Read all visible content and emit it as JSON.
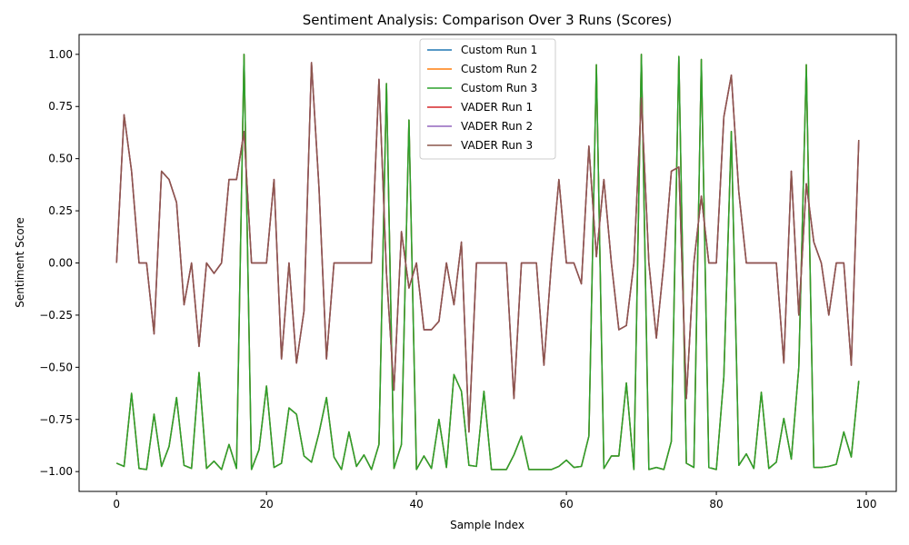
{
  "chart_data": {
    "type": "line",
    "title": "Sentiment Analysis: Comparison Over 3 Runs (Scores)",
    "xlabel": "Sample Index",
    "ylabel": "Sentiment Score",
    "xlim": [
      -5,
      104
    ],
    "ylim": [
      -1.095,
      1.095
    ],
    "x_ticks": [
      0,
      20,
      40,
      60,
      80,
      100
    ],
    "y_ticks": [
      -1.0,
      -0.75,
      -0.5,
      -0.25,
      0.0,
      0.25,
      0.5,
      0.75,
      1.0
    ],
    "y_tick_labels": [
      "−1.00",
      "−0.75",
      "−0.50",
      "−0.25",
      "0.00",
      "0.25",
      "0.50",
      "0.75",
      "1.00"
    ],
    "grid": false,
    "legend_position": "top-center",
    "x": [
      0,
      1,
      2,
      3,
      4,
      5,
      6,
      7,
      8,
      9,
      10,
      11,
      12,
      13,
      14,
      15,
      16,
      17,
      18,
      19,
      20,
      21,
      22,
      23,
      24,
      25,
      26,
      27,
      28,
      29,
      30,
      31,
      32,
      33,
      34,
      35,
      36,
      37,
      38,
      39,
      40,
      41,
      42,
      43,
      44,
      45,
      46,
      47,
      48,
      49,
      50,
      51,
      52,
      53,
      54,
      55,
      56,
      57,
      58,
      59,
      60,
      61,
      62,
      63,
      64,
      65,
      66,
      67,
      68,
      69,
      70,
      71,
      72,
      73,
      74,
      75,
      76,
      77,
      78,
      79,
      80,
      81,
      82,
      83,
      84,
      85,
      86,
      87,
      88,
      89,
      90,
      91,
      92,
      93,
      94,
      95,
      96,
      97,
      98,
      99
    ],
    "series": [
      {
        "name": "Custom Run 1",
        "color": "#1f77b4",
        "values": [
          -0.96,
          -0.975,
          -0.625,
          -0.985,
          -0.99,
          -0.725,
          -0.975,
          -0.88,
          -0.645,
          -0.97,
          -0.985,
          -0.525,
          -0.985,
          -0.95,
          -0.99,
          -0.87,
          -0.985,
          1.0,
          -0.99,
          -0.895,
          -0.59,
          -0.98,
          -0.96,
          -0.695,
          -0.725,
          -0.925,
          -0.955,
          -0.815,
          -0.645,
          -0.93,
          -0.99,
          -0.81,
          -0.975,
          -0.92,
          -0.99,
          -0.87,
          0.86,
          -0.985,
          -0.87,
          0.685,
          -0.99,
          -0.925,
          -0.985,
          -0.75,
          -0.98,
          -0.535,
          -0.615,
          -0.97,
          -0.975,
          -0.615,
          -0.99,
          -0.99,
          -0.99,
          -0.92,
          -0.83,
          -0.99,
          -0.99,
          -0.99,
          -0.99,
          -0.975,
          -0.945,
          -0.98,
          -0.975,
          -0.83,
          0.95,
          -0.985,
          -0.925,
          -0.925,
          -0.575,
          -0.99,
          1.0,
          -0.99,
          -0.98,
          -0.99,
          -0.855,
          0.99,
          -0.96,
          -0.98,
          0.975,
          -0.98,
          -0.99,
          -0.545,
          0.63,
          -0.97,
          -0.915,
          -0.985,
          -0.62,
          -0.985,
          -0.955,
          -0.745,
          -0.94,
          -0.5,
          0.95,
          -0.98,
          -0.98,
          -0.975,
          -0.965,
          -0.81,
          -0.93,
          -0.565
        ]
      },
      {
        "name": "Custom Run 2",
        "color": "#ff7f0e",
        "values": [
          -0.96,
          -0.975,
          -0.625,
          -0.985,
          -0.99,
          -0.725,
          -0.975,
          -0.88,
          -0.645,
          -0.97,
          -0.985,
          -0.525,
          -0.985,
          -0.95,
          -0.99,
          -0.87,
          -0.985,
          1.0,
          -0.99,
          -0.895,
          -0.59,
          -0.98,
          -0.96,
          -0.695,
          -0.725,
          -0.925,
          -0.955,
          -0.815,
          -0.645,
          -0.93,
          -0.99,
          -0.81,
          -0.975,
          -0.92,
          -0.99,
          -0.87,
          0.86,
          -0.985,
          -0.87,
          0.685,
          -0.99,
          -0.925,
          -0.985,
          -0.75,
          -0.98,
          -0.535,
          -0.615,
          -0.97,
          -0.975,
          -0.615,
          -0.99,
          -0.99,
          -0.99,
          -0.92,
          -0.83,
          -0.99,
          -0.99,
          -0.99,
          -0.99,
          -0.975,
          -0.945,
          -0.98,
          -0.975,
          -0.83,
          0.95,
          -0.985,
          -0.925,
          -0.925,
          -0.575,
          -0.99,
          1.0,
          -0.99,
          -0.98,
          -0.99,
          -0.855,
          0.99,
          -0.96,
          -0.98,
          0.975,
          -0.98,
          -0.99,
          -0.545,
          0.63,
          -0.97,
          -0.915,
          -0.985,
          -0.62,
          -0.985,
          -0.955,
          -0.745,
          -0.94,
          -0.5,
          0.95,
          -0.98,
          -0.98,
          -0.975,
          -0.965,
          -0.81,
          -0.93,
          -0.565
        ]
      },
      {
        "name": "Custom Run 3",
        "color": "#2ca02c",
        "values": [
          -0.96,
          -0.975,
          -0.625,
          -0.985,
          -0.99,
          -0.725,
          -0.975,
          -0.88,
          -0.645,
          -0.97,
          -0.985,
          -0.525,
          -0.985,
          -0.95,
          -0.99,
          -0.87,
          -0.985,
          1.0,
          -0.99,
          -0.895,
          -0.59,
          -0.98,
          -0.96,
          -0.695,
          -0.725,
          -0.925,
          -0.955,
          -0.815,
          -0.645,
          -0.93,
          -0.99,
          -0.81,
          -0.975,
          -0.92,
          -0.99,
          -0.87,
          0.86,
          -0.985,
          -0.87,
          0.685,
          -0.99,
          -0.925,
          -0.985,
          -0.75,
          -0.98,
          -0.535,
          -0.615,
          -0.97,
          -0.975,
          -0.615,
          -0.99,
          -0.99,
          -0.99,
          -0.92,
          -0.83,
          -0.99,
          -0.99,
          -0.99,
          -0.99,
          -0.975,
          -0.945,
          -0.98,
          -0.975,
          -0.83,
          0.95,
          -0.985,
          -0.925,
          -0.925,
          -0.575,
          -0.99,
          1.0,
          -0.99,
          -0.98,
          -0.99,
          -0.855,
          0.99,
          -0.96,
          -0.98,
          0.975,
          -0.98,
          -0.99,
          -0.545,
          0.63,
          -0.97,
          -0.915,
          -0.985,
          -0.62,
          -0.985,
          -0.955,
          -0.745,
          -0.94,
          -0.5,
          0.95,
          -0.98,
          -0.98,
          -0.975,
          -0.965,
          -0.81,
          -0.93,
          -0.565
        ]
      },
      {
        "name": "VADER Run 1",
        "color": "#d62728",
        "values": [
          0.0,
          0.71,
          0.44,
          0.0,
          0.0,
          -0.34,
          0.44,
          0.4,
          0.29,
          -0.2,
          0.0,
          -0.4,
          0.0,
          -0.05,
          0.0,
          0.4,
          0.4,
          0.63,
          0.0,
          0.0,
          0.0,
          0.4,
          -0.46,
          0.0,
          -0.48,
          -0.23,
          0.96,
          0.36,
          -0.46,
          0.0,
          0.0,
          0.0,
          0.0,
          0.0,
          0.0,
          0.88,
          -0.05,
          -0.61,
          0.15,
          -0.12,
          0.0,
          -0.32,
          -0.32,
          -0.28,
          0.0,
          -0.2,
          0.1,
          -0.81,
          0.0,
          0.0,
          0.0,
          0.0,
          0.0,
          -0.65,
          0.0,
          0.0,
          0.0,
          -0.49,
          0.0,
          0.4,
          0.0,
          0.0,
          -0.1,
          0.56,
          0.03,
          0.4,
          0.0,
          -0.32,
          -0.3,
          0.0,
          0.79,
          0.0,
          -0.36,
          0.0,
          0.44,
          0.46,
          -0.65,
          0.0,
          0.32,
          0.0,
          0.0,
          0.7,
          0.9,
          0.34,
          0.0,
          0.0,
          0.0,
          0.0,
          0.0,
          -0.48,
          0.44,
          -0.25,
          0.38,
          0.1,
          0.0,
          -0.25,
          0.0,
          0.0,
          -0.49,
          0.59
        ]
      },
      {
        "name": "VADER Run 2",
        "color": "#9467bd",
        "values": [
          0.0,
          0.71,
          0.44,
          0.0,
          0.0,
          -0.34,
          0.44,
          0.4,
          0.29,
          -0.2,
          0.0,
          -0.4,
          0.0,
          -0.05,
          0.0,
          0.4,
          0.4,
          0.63,
          0.0,
          0.0,
          0.0,
          0.4,
          -0.46,
          0.0,
          -0.48,
          -0.23,
          0.96,
          0.36,
          -0.46,
          0.0,
          0.0,
          0.0,
          0.0,
          0.0,
          0.0,
          0.88,
          -0.05,
          -0.61,
          0.15,
          -0.12,
          0.0,
          -0.32,
          -0.32,
          -0.28,
          0.0,
          -0.2,
          0.1,
          -0.81,
          0.0,
          0.0,
          0.0,
          0.0,
          0.0,
          -0.65,
          0.0,
          0.0,
          0.0,
          -0.49,
          0.0,
          0.4,
          0.0,
          0.0,
          -0.1,
          0.56,
          0.03,
          0.4,
          0.0,
          -0.32,
          -0.3,
          0.0,
          0.79,
          0.0,
          -0.36,
          0.0,
          0.44,
          0.46,
          -0.65,
          0.0,
          0.32,
          0.0,
          0.0,
          0.7,
          0.9,
          0.34,
          0.0,
          0.0,
          0.0,
          0.0,
          0.0,
          -0.48,
          0.44,
          -0.25,
          0.38,
          0.1,
          0.0,
          -0.25,
          0.0,
          0.0,
          -0.49,
          0.59
        ]
      },
      {
        "name": "VADER Run 3",
        "color": "#8c564b",
        "values": [
          0.0,
          0.71,
          0.44,
          0.0,
          0.0,
          -0.34,
          0.44,
          0.4,
          0.29,
          -0.2,
          0.0,
          -0.4,
          0.0,
          -0.05,
          0.0,
          0.4,
          0.4,
          0.63,
          0.0,
          0.0,
          0.0,
          0.4,
          -0.46,
          0.0,
          -0.48,
          -0.23,
          0.96,
          0.36,
          -0.46,
          0.0,
          0.0,
          0.0,
          0.0,
          0.0,
          0.0,
          0.88,
          -0.05,
          -0.61,
          0.15,
          -0.12,
          0.0,
          -0.32,
          -0.32,
          -0.28,
          0.0,
          -0.2,
          0.1,
          -0.81,
          0.0,
          0.0,
          0.0,
          0.0,
          0.0,
          -0.65,
          0.0,
          0.0,
          0.0,
          -0.49,
          0.0,
          0.4,
          0.0,
          0.0,
          -0.1,
          0.56,
          0.03,
          0.4,
          0.0,
          -0.32,
          -0.3,
          0.0,
          0.79,
          0.0,
          -0.36,
          0.0,
          0.44,
          0.46,
          -0.65,
          0.0,
          0.32,
          0.0,
          0.0,
          0.7,
          0.9,
          0.34,
          0.0,
          0.0,
          0.0,
          0.0,
          0.0,
          -0.48,
          0.44,
          -0.25,
          0.38,
          0.1,
          0.0,
          -0.25,
          0.0,
          0.0,
          -0.49,
          0.59
        ]
      }
    ]
  }
}
